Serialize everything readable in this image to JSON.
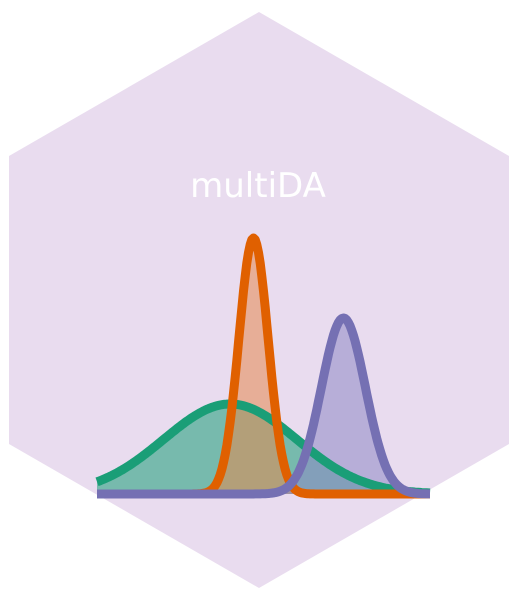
{
  "logo": {
    "title": "multiDA",
    "background_color": "#e9dcef",
    "curves": [
      {
        "name": "green-density",
        "stroke": "#1a9e77",
        "fill": "#1a9e77",
        "mean": 0.0,
        "sd": 1.0
      },
      {
        "name": "orange-density",
        "stroke": "#e06000",
        "fill": "#e5894f",
        "mean": 0.35,
        "sd": 0.22
      },
      {
        "name": "purple-density",
        "stroke": "#7570b3",
        "fill": "#8e89c4",
        "mean": 1.7,
        "sd": 0.33
      }
    ]
  }
}
